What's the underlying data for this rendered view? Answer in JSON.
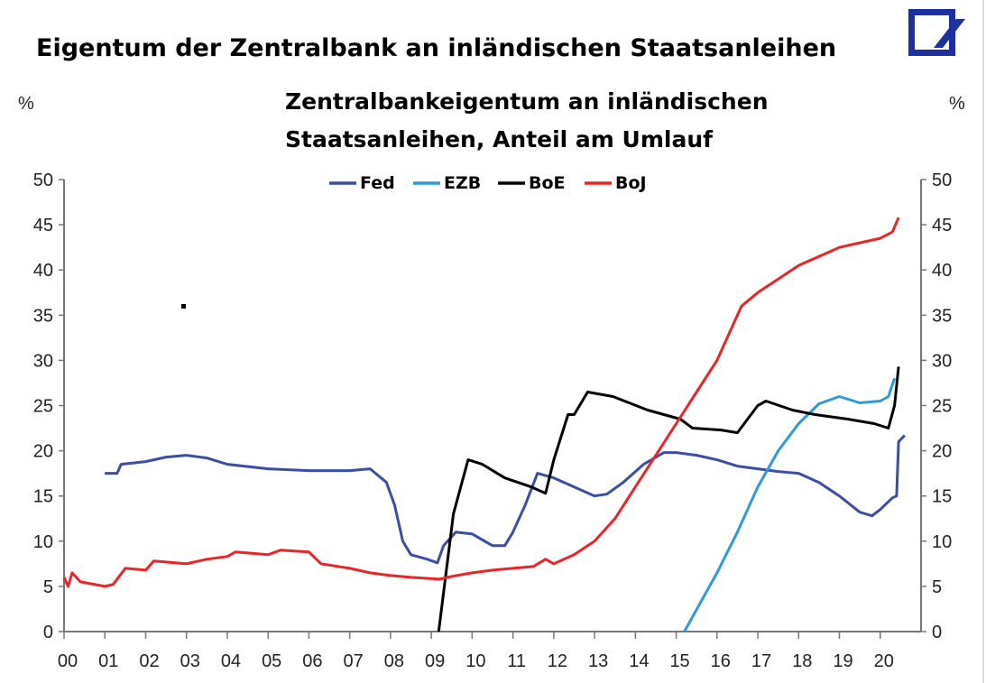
{
  "title": "Eigentum der Zentralbank an inländischen Staatsanleihen",
  "logo": "Deutsche Bank",
  "chart_data": {
    "type": "line",
    "title": "Zentralbankeigentum an inländischen Staatsanleihen, Anteil am Umlauf",
    "subtitle_lines": [
      "Zentralbankeigentum an inländischen",
      "Staatsanleihen, Anteil am Umlauf"
    ],
    "ylabel_left": "%",
    "ylabel_right": "%",
    "ylim": [
      0,
      50
    ],
    "yticks": [
      0,
      5,
      10,
      15,
      20,
      25,
      30,
      35,
      40,
      45,
      50
    ],
    "xlim": [
      0,
      21
    ],
    "xticks": [
      "00",
      "01",
      "02",
      "03",
      "04",
      "05",
      "06",
      "07",
      "08",
      "09",
      "10",
      "11",
      "12",
      "13",
      "14",
      "15",
      "16",
      "17",
      "18",
      "19",
      "20"
    ],
    "legend_position": "top-center",
    "series": [
      {
        "name": "Fed",
        "color": "#3b4ea3",
        "points": [
          [
            1.0,
            17.5
          ],
          [
            1.3,
            17.5
          ],
          [
            1.4,
            18.5
          ],
          [
            2.0,
            18.8
          ],
          [
            2.5,
            19.3
          ],
          [
            3.0,
            19.5
          ],
          [
            3.5,
            19.2
          ],
          [
            4.0,
            18.5
          ],
          [
            5.0,
            18.0
          ],
          [
            6.0,
            17.8
          ],
          [
            7.0,
            17.8
          ],
          [
            7.5,
            18.0
          ],
          [
            7.9,
            16.5
          ],
          [
            8.1,
            14
          ],
          [
            8.3,
            10
          ],
          [
            8.5,
            8.5
          ],
          [
            8.9,
            8
          ],
          [
            9.15,
            7.6
          ],
          [
            9.3,
            9.5
          ],
          [
            9.6,
            11
          ],
          [
            10.0,
            10.8
          ],
          [
            10.5,
            9.5
          ],
          [
            10.8,
            9.5
          ],
          [
            11.0,
            11
          ],
          [
            11.3,
            14
          ],
          [
            11.6,
            17.5
          ],
          [
            12.0,
            17.0
          ],
          [
            12.5,
            16
          ],
          [
            13.0,
            15
          ],
          [
            13.3,
            15.2
          ],
          [
            13.7,
            16.5
          ],
          [
            14.2,
            18.5
          ],
          [
            14.7,
            19.8
          ],
          [
            15.0,
            19.8
          ],
          [
            15.5,
            19.5
          ],
          [
            16.0,
            19
          ],
          [
            16.5,
            18.3
          ],
          [
            17.0,
            18
          ],
          [
            17.5,
            17.7
          ],
          [
            18.0,
            17.5
          ],
          [
            18.5,
            16.5
          ],
          [
            19.0,
            15
          ],
          [
            19.5,
            13.2
          ],
          [
            19.8,
            12.8
          ],
          [
            20.0,
            13.5
          ],
          [
            20.3,
            14.8
          ],
          [
            20.4,
            15
          ],
          [
            20.45,
            21
          ],
          [
            20.6,
            21.7
          ]
        ]
      },
      {
        "name": "EZB",
        "color": "#2e9ad8",
        "points": [
          [
            15.2,
            0
          ],
          [
            16.0,
            6.5
          ],
          [
            16.5,
            11
          ],
          [
            17.0,
            16
          ],
          [
            17.5,
            20
          ],
          [
            18.0,
            23
          ],
          [
            18.5,
            25.2
          ],
          [
            19.0,
            26
          ],
          [
            19.5,
            25.3
          ],
          [
            20.0,
            25.5
          ],
          [
            20.2,
            26
          ],
          [
            20.35,
            28
          ]
        ]
      },
      {
        "name": "BoE",
        "color": "#000000",
        "points": [
          [
            9.18,
            0
          ],
          [
            9.54,
            13
          ],
          [
            9.9,
            19
          ],
          [
            10.25,
            18.5
          ],
          [
            10.8,
            17
          ],
          [
            11.45,
            16
          ],
          [
            11.8,
            15.3
          ],
          [
            12.0,
            19
          ],
          [
            12.35,
            24
          ],
          [
            12.5,
            24
          ],
          [
            12.83,
            26.5
          ],
          [
            13.45,
            26
          ],
          [
            14.3,
            24.5
          ],
          [
            15.1,
            23.5
          ],
          [
            15.4,
            22.5
          ],
          [
            16.1,
            22.3
          ],
          [
            16.5,
            22
          ],
          [
            17.0,
            25
          ],
          [
            17.2,
            25.5
          ],
          [
            17.85,
            24.5
          ],
          [
            18.4,
            24
          ],
          [
            19.2,
            23.5
          ],
          [
            19.85,
            23
          ],
          [
            20.2,
            22.5
          ],
          [
            20.35,
            25
          ],
          [
            20.45,
            29.3
          ]
        ]
      },
      {
        "name": "BoJ",
        "color": "#e8262a",
        "points": [
          [
            0.0,
            6
          ],
          [
            0.1,
            5
          ],
          [
            0.2,
            6.5
          ],
          [
            0.4,
            5.5
          ],
          [
            1.0,
            5
          ],
          [
            1.2,
            5.2
          ],
          [
            1.5,
            7
          ],
          [
            2.0,
            6.8
          ],
          [
            2.2,
            7.8
          ],
          [
            3.0,
            7.5
          ],
          [
            3.5,
            8
          ],
          [
            4.0,
            8.3
          ],
          [
            4.2,
            8.8
          ],
          [
            5.0,
            8.5
          ],
          [
            5.3,
            9
          ],
          [
            6.0,
            8.8
          ],
          [
            6.3,
            7.5
          ],
          [
            7.0,
            7
          ],
          [
            7.5,
            6.5
          ],
          [
            8.0,
            6.2
          ],
          [
            8.5,
            6
          ],
          [
            9.2,
            5.8
          ],
          [
            9.5,
            6.1
          ],
          [
            10.0,
            6.5
          ],
          [
            10.5,
            6.8
          ],
          [
            11.0,
            7
          ],
          [
            11.5,
            7.2
          ],
          [
            11.8,
            8
          ],
          [
            12.0,
            7.5
          ],
          [
            12.5,
            8.5
          ],
          [
            13.0,
            10
          ],
          [
            13.5,
            12.5
          ],
          [
            14.0,
            16
          ],
          [
            14.5,
            19.5
          ],
          [
            15.0,
            23
          ],
          [
            15.5,
            26.5
          ],
          [
            16.0,
            30
          ],
          [
            16.3,
            33
          ],
          [
            16.6,
            36
          ],
          [
            17.0,
            37.5
          ],
          [
            17.5,
            39
          ],
          [
            18.0,
            40.5
          ],
          [
            18.5,
            41.5
          ],
          [
            19.0,
            42.5
          ],
          [
            19.5,
            43
          ],
          [
            20.0,
            43.5
          ],
          [
            20.3,
            44.2
          ],
          [
            20.45,
            45.8
          ]
        ]
      }
    ]
  }
}
